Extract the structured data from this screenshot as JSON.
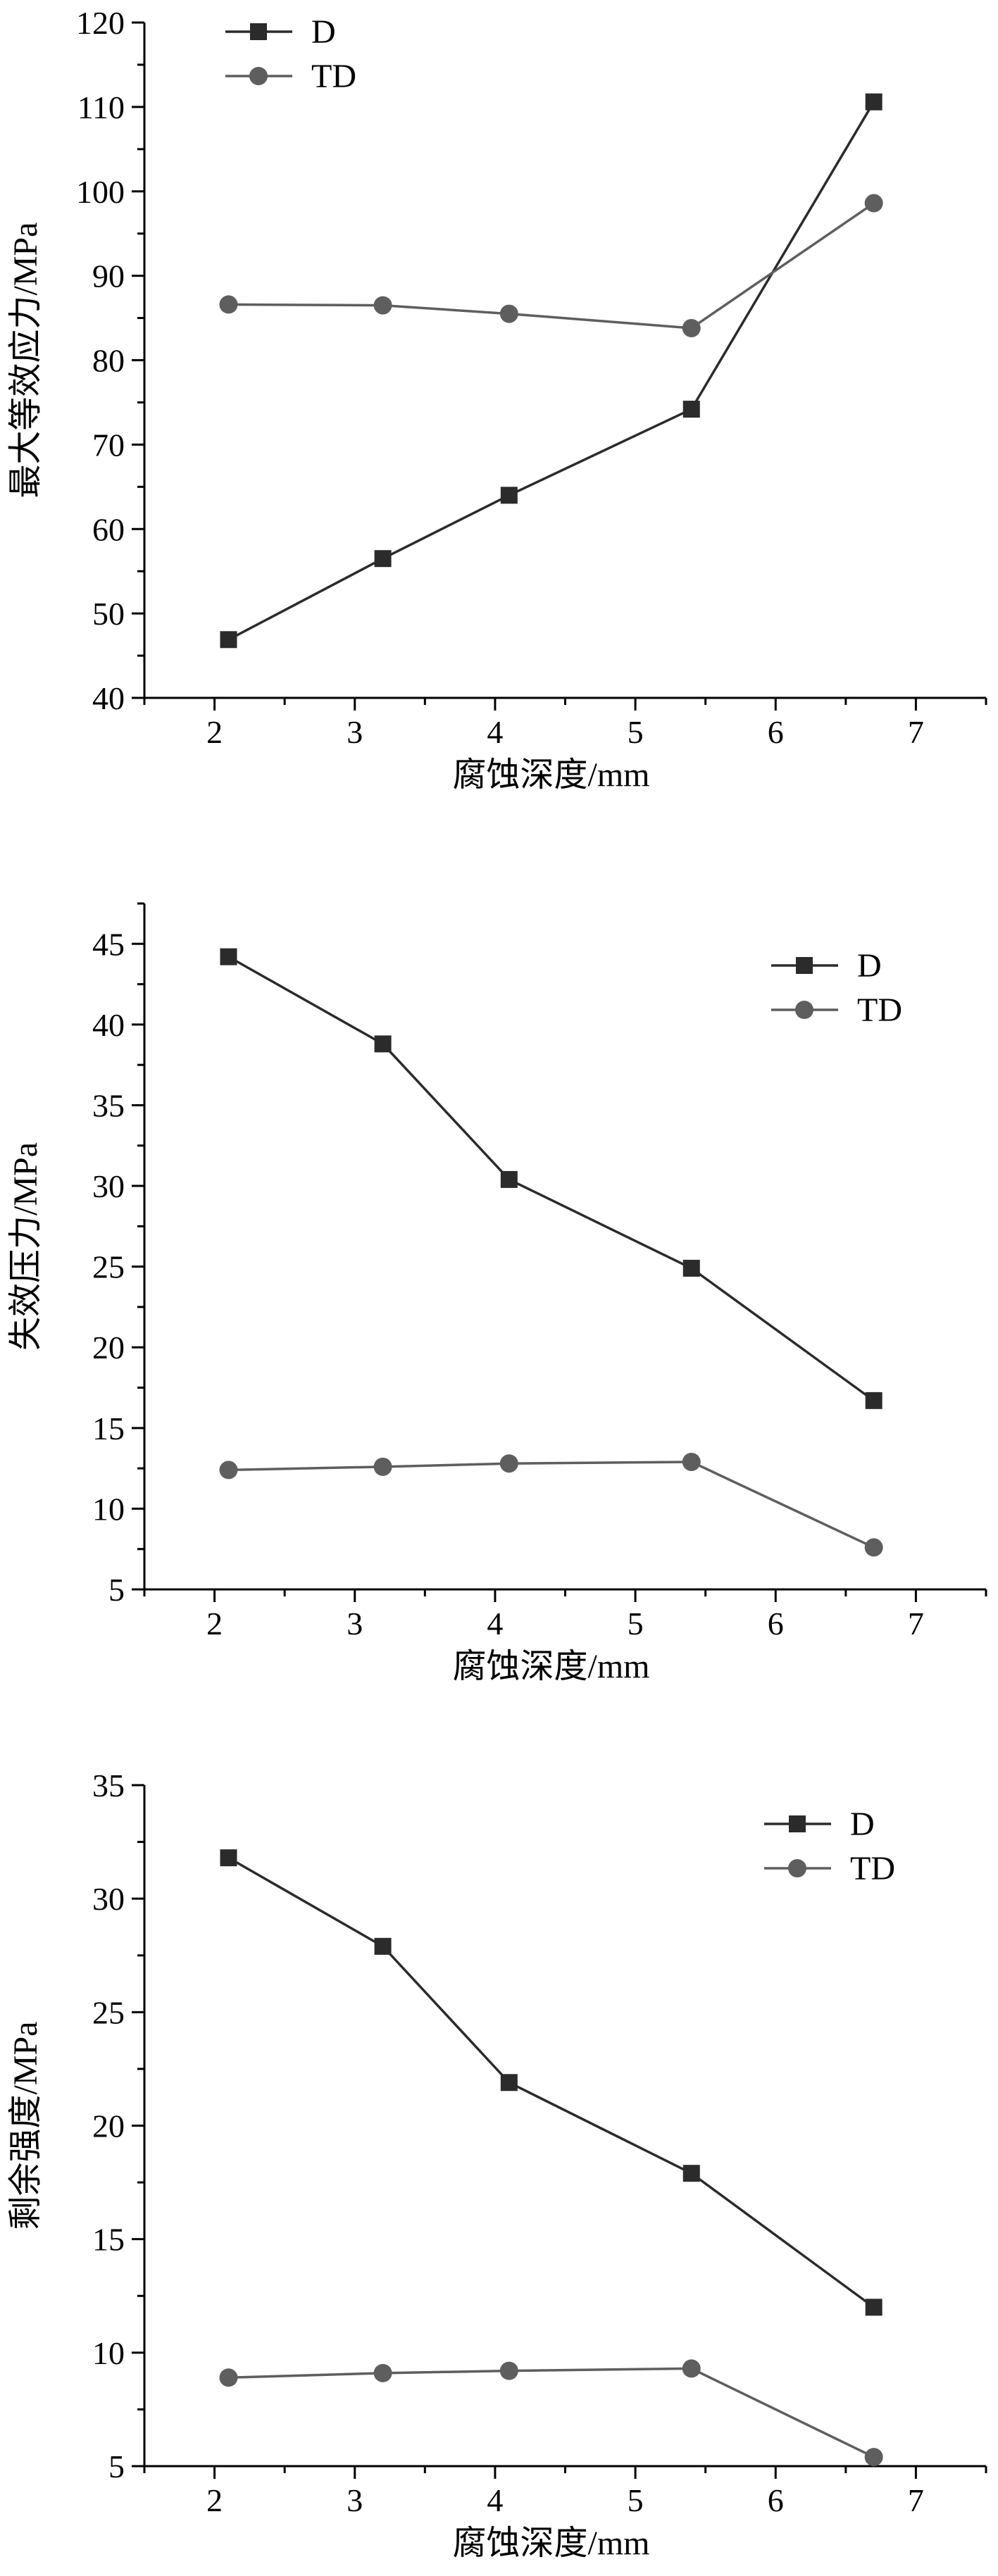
{
  "chart_data": [
    {
      "type": "line",
      "xlabel": "腐蚀深度/mm",
      "ylabel": "最大等效应力/MPa",
      "xlim": [
        1.5,
        7.5
      ],
      "ylim": [
        40,
        120
      ],
      "xticks": [
        2,
        3,
        4,
        5,
        6,
        7
      ],
      "yticks": [
        40,
        50,
        60,
        70,
        80,
        90,
        100,
        110,
        120
      ],
      "grid": false,
      "legend_position": "top-left",
      "series": [
        {
          "name": "D",
          "marker": "square",
          "color": "#2b2b2b",
          "x": [
            2.1,
            3.2,
            4.1,
            5.4,
            6.7
          ],
          "y": [
            46.9,
            56.5,
            64.0,
            74.2,
            110.6
          ]
        },
        {
          "name": "TD",
          "marker": "circle",
          "color": "#5e5e5e",
          "x": [
            2.1,
            3.2,
            4.1,
            5.4,
            6.7
          ],
          "y": [
            86.6,
            86.5,
            85.5,
            83.8,
            98.6
          ]
        }
      ]
    },
    {
      "type": "line",
      "xlabel": "腐蚀深度/mm",
      "ylabel": "失效压力/MPa",
      "xlim": [
        1.5,
        7.5
      ],
      "ylim": [
        5,
        47.5
      ],
      "xticks": [
        2,
        3,
        4,
        5,
        6,
        7
      ],
      "yticks": [
        5,
        10,
        15,
        20,
        25,
        30,
        35,
        40,
        45
      ],
      "grid": false,
      "legend_position": "top-right",
      "series": [
        {
          "name": "D",
          "marker": "square",
          "color": "#2b2b2b",
          "x": [
            2.1,
            3.2,
            4.1,
            5.4,
            6.7
          ],
          "y": [
            44.2,
            38.8,
            30.4,
            24.9,
            16.7
          ]
        },
        {
          "name": "TD",
          "marker": "circle",
          "color": "#5e5e5e",
          "x": [
            2.1,
            3.2,
            4.1,
            5.4,
            6.7
          ],
          "y": [
            12.4,
            12.6,
            12.8,
            12.9,
            7.6
          ]
        }
      ]
    },
    {
      "type": "line",
      "xlabel": "腐蚀深度/mm",
      "ylabel": "剩余强度/MPa",
      "xlim": [
        1.5,
        7.5
      ],
      "ylim": [
        5,
        35
      ],
      "xticks": [
        2,
        3,
        4,
        5,
        6,
        7
      ],
      "yticks": [
        5,
        10,
        15,
        20,
        25,
        30,
        35
      ],
      "grid": false,
      "legend_position": "top-right",
      "series": [
        {
          "name": "D",
          "marker": "square",
          "color": "#2b2b2b",
          "x": [
            2.1,
            3.2,
            4.1,
            5.4,
            6.7
          ],
          "y": [
            31.8,
            27.9,
            21.9,
            17.9,
            12.0
          ]
        },
        {
          "name": "TD",
          "marker": "circle",
          "color": "#5e5e5e",
          "x": [
            2.1,
            3.2,
            4.1,
            5.4,
            6.7
          ],
          "y": [
            8.9,
            9.1,
            9.2,
            9.3,
            5.4
          ]
        }
      ]
    }
  ]
}
